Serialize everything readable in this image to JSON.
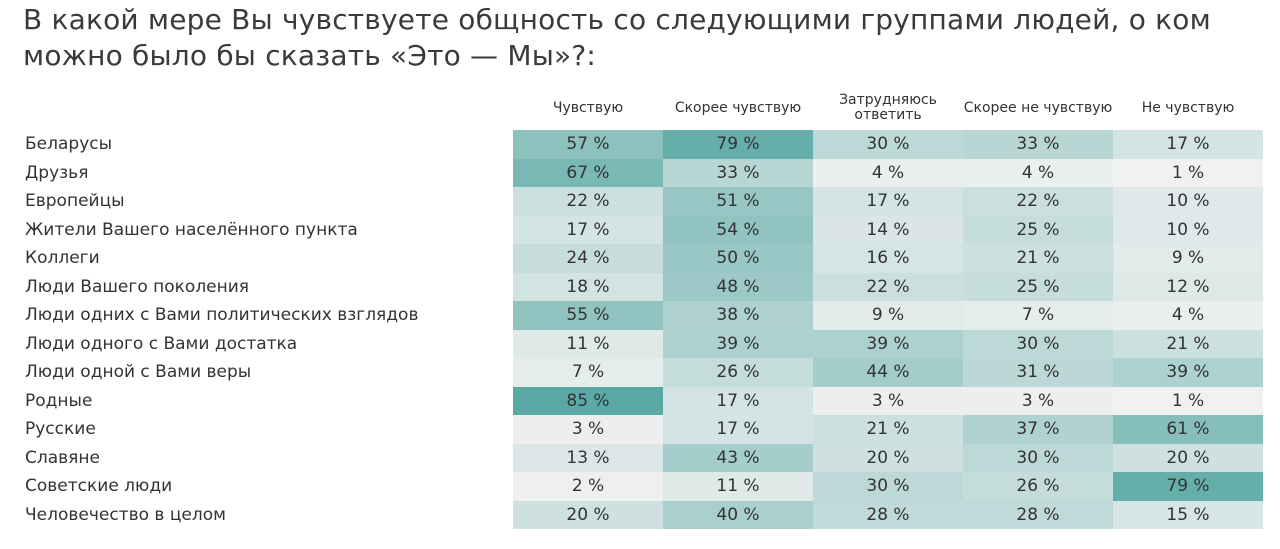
{
  "title": "В какой мере Вы чувствуете общность со следующими группами людей, о ком можно было бы сказать «Это — Мы»?:",
  "chart_data": {
    "type": "heatmap",
    "title": "В какой мере Вы чувствуете общность со следующими группами людей, о ком можно было бы сказать «Это — Мы»?:",
    "columns": [
      "Чувствую",
      "Скорее чувствую",
      "Затрудняюсь ответить",
      "Скорее не чувствую",
      "Не чувствую"
    ],
    "rows": [
      "Беларусы",
      "Друзья",
      "Европейцы",
      "Жители Вашего населённого пункта",
      "Коллеги",
      "Люди Вашего поколения",
      "Люди одних с Вами политических взглядов",
      "Люди одного с Вами достатка",
      "Люди одной с Вами веры",
      "Родные",
      "Русские",
      "Славяне",
      "Советские люди",
      "Человечество в целом"
    ],
    "values": [
      [
        57,
        79,
        30,
        33,
        17
      ],
      [
        67,
        33,
        4,
        4,
        1
      ],
      [
        22,
        51,
        17,
        22,
        10
      ],
      [
        17,
        54,
        14,
        25,
        10
      ],
      [
        24,
        50,
        16,
        21,
        9
      ],
      [
        18,
        48,
        22,
        25,
        12
      ],
      [
        55,
        38,
        9,
        7,
        4
      ],
      [
        11,
        39,
        39,
        30,
        21
      ],
      [
        7,
        26,
        44,
        31,
        39
      ],
      [
        85,
        17,
        3,
        3,
        1
      ],
      [
        3,
        17,
        21,
        37,
        61
      ],
      [
        13,
        43,
        20,
        30,
        20
      ],
      [
        2,
        11,
        30,
        26,
        79
      ],
      [
        20,
        40,
        28,
        28,
        15
      ]
    ],
    "unit": "%",
    "color_low": "#f2f2f2",
    "color_high": "#5aa9a5"
  }
}
